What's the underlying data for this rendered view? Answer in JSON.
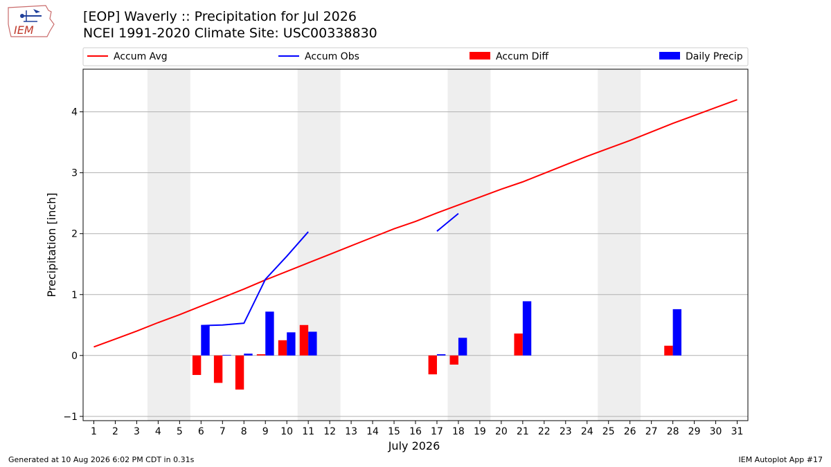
{
  "header": {
    "title": "[EOP] Waverly :: Precipitation for Jul 2026",
    "subtitle": "NCEI 1991-2020 Climate Site: USC00338830",
    "logo_text": "IEM"
  },
  "footer": {
    "generated": "Generated at 10 Aug 2026 6:02 PM CDT in 0.31s",
    "app": "IEM Autoplot App #17"
  },
  "colors": {
    "accum_avg": "#ff0000",
    "accum_obs": "#0000ff",
    "accum_diff": "#ff0000",
    "daily_precip": "#0000ff",
    "weekend_shade": "#eeeeee",
    "grid": "#b0b0b0"
  },
  "chart_data": {
    "type": "bar",
    "xlabel": "July 2026",
    "ylabel": "Precipitation [inch]",
    "xlim": [
      0.5,
      31.5
    ],
    "ylim": [
      -1.07,
      4.7
    ],
    "yticks": [
      -1,
      0,
      1,
      2,
      3,
      4
    ],
    "ytick_labels": [
      "−1",
      "0",
      "1",
      "2",
      "3",
      "4"
    ],
    "grid": "horizontal",
    "legend_position": "top",
    "days": [
      1,
      2,
      3,
      4,
      5,
      6,
      7,
      8,
      9,
      10,
      11,
      12,
      13,
      14,
      15,
      16,
      17,
      18,
      19,
      20,
      21,
      22,
      23,
      24,
      25,
      26,
      27,
      28,
      29,
      30,
      31
    ],
    "weekend_shaded_days": [
      [
        4,
        5
      ],
      [
        11,
        12
      ],
      [
        18,
        19
      ],
      [
        25,
        26
      ]
    ],
    "legend": [
      "Accum Avg",
      "Accum Obs",
      "Accum Diff",
      "Daily Precip"
    ],
    "series": [
      {
        "name": "Accum Avg",
        "type": "line",
        "x": [
          1,
          2,
          3,
          4,
          5,
          6,
          7,
          8,
          9,
          10,
          11,
          12,
          13,
          14,
          15,
          16,
          17,
          18,
          19,
          20,
          21,
          22,
          23,
          24,
          25,
          26,
          27,
          28,
          29,
          30,
          31
        ],
        "values": [
          0.14,
          0.27,
          0.4,
          0.54,
          0.67,
          0.81,
          0.95,
          1.09,
          1.24,
          1.38,
          1.52,
          1.66,
          1.8,
          1.94,
          2.08,
          2.2,
          2.34,
          2.47,
          2.6,
          2.73,
          2.85,
          2.99,
          3.13,
          3.27,
          3.4,
          3.53,
          3.67,
          3.81,
          3.94,
          4.07,
          4.2
        ]
      },
      {
        "name": "Accum Obs",
        "type": "line",
        "segments": [
          {
            "x": [
              6,
              7,
              8,
              9,
              10,
              11
            ],
            "values": [
              0.49,
              0.5,
              0.53,
              1.25,
              1.63,
              2.03
            ]
          },
          {
            "x": [
              17,
              18
            ],
            "values": [
              2.04,
              2.33
            ]
          }
        ]
      },
      {
        "name": "Accum Diff",
        "type": "bar",
        "x": [
          6,
          7,
          8,
          9,
          10,
          11,
          17,
          18,
          21,
          28
        ],
        "values": [
          -0.32,
          -0.45,
          -0.56,
          0.02,
          0.25,
          0.5,
          -0.31,
          -0.15,
          0.36,
          0.16
        ]
      },
      {
        "name": "Daily Precip",
        "type": "bar",
        "x": [
          6,
          7,
          8,
          9,
          10,
          11,
          17,
          18,
          21,
          28
        ],
        "values": [
          0.49,
          0.01,
          0.03,
          0.72,
          0.38,
          0.39,
          0.02,
          0.29,
          0.89,
          0.76
        ]
      }
    ]
  }
}
